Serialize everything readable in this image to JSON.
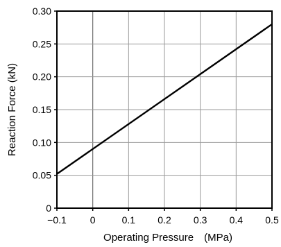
{
  "chart_data": {
    "type": "line",
    "xlabel": "Operating Pressure  (MPa)",
    "ylabel": "Reaction Force (kN)",
    "xlim": [
      -0.1,
      0.5
    ],
    "ylim": [
      0,
      0.3
    ],
    "x_ticks": [
      -0.1,
      0,
      0.1,
      0.2,
      0.3,
      0.4,
      0.5
    ],
    "x_tick_labels": [
      "−0.1",
      "0",
      "0.1",
      "0.2",
      "0.3",
      "0.4",
      "0.5"
    ],
    "y_ticks": [
      0,
      0.05,
      0.1,
      0.15,
      0.2,
      0.25,
      0.3
    ],
    "y_tick_labels": [
      "0",
      "0.05",
      "0.10",
      "0.15",
      "0.20",
      "0.25",
      "0.30"
    ],
    "grid": true,
    "series": [
      {
        "x": [
          -0.1,
          0.5
        ],
        "y": [
          0.052,
          0.28
        ]
      }
    ]
  }
}
